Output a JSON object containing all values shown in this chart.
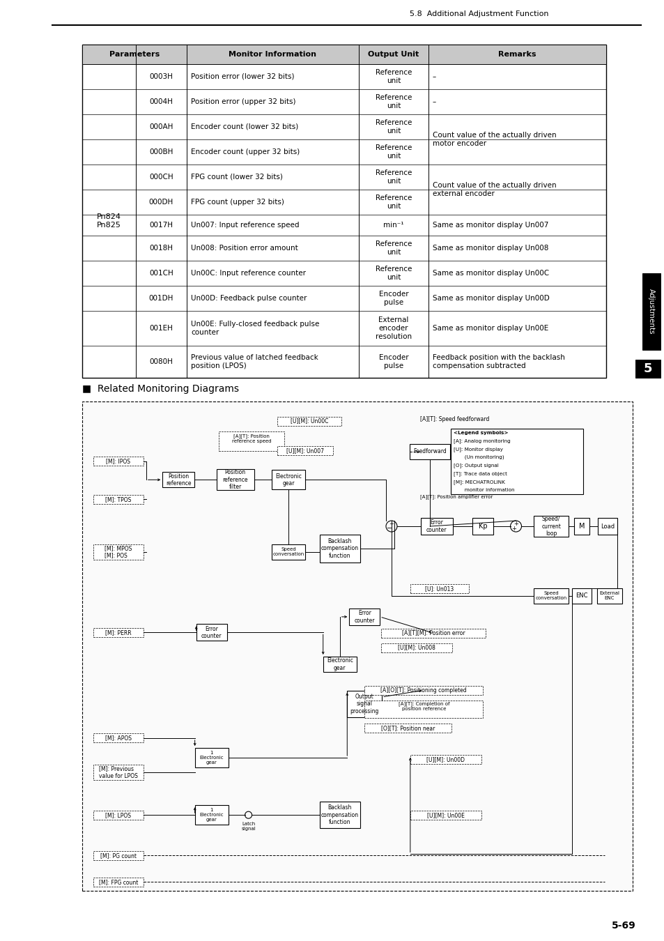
{
  "page_header": "5.8  Additional Adjustment Function",
  "page_footer": "5-69",
  "table_header": [
    "Parameters",
    "Monitor Information",
    "Output Unit",
    "Remarks"
  ],
  "param_label": "Pn824\nPn825",
  "table_rows": [
    {
      "code": "0003H",
      "info": "Position error (lower 32 bits)",
      "unit": "Reference\nunit",
      "remark": "–",
      "remark_span": 0
    },
    {
      "code": "0004H",
      "info": "Position error (upper 32 bits)",
      "unit": "Reference\nunit",
      "remark": "–",
      "remark_span": 0
    },
    {
      "code": "000AH",
      "info": "Encoder count (lower 32 bits)",
      "unit": "Reference\nunit",
      "remark": "Count value of the actually driven\nmotor encoder",
      "remark_span": 2
    },
    {
      "code": "000BH",
      "info": "Encoder count (upper 32 bits)",
      "unit": "Reference\nunit",
      "remark": "",
      "remark_span": 0
    },
    {
      "code": "000CH",
      "info": "FPG count (lower 32 bits)",
      "unit": "Reference\nunit",
      "remark": "Count value of the actually driven\nexternal encoder",
      "remark_span": 2
    },
    {
      "code": "000DH",
      "info": "FPG count (upper 32 bits)",
      "unit": "Reference\nunit",
      "remark": "",
      "remark_span": 0
    },
    {
      "code": "0017H",
      "info": "Un007: Input reference speed",
      "unit": "min⁻¹",
      "remark": "Same as monitor display Un007",
      "remark_span": 0
    },
    {
      "code": "0018H",
      "info": "Un008: Position error amount",
      "unit": "Reference\nunit",
      "remark": "Same as monitor display Un008",
      "remark_span": 0
    },
    {
      "code": "001CH",
      "info": "Un00C: Input reference counter",
      "unit": "Reference\nunit",
      "remark": "Same as monitor display Un00C",
      "remark_span": 0
    },
    {
      "code": "001DH",
      "info": "Un00D: Feedback pulse counter",
      "unit": "Encoder\npulse",
      "remark": "Same as monitor display Un00D",
      "remark_span": 0
    },
    {
      "code": "001EH",
      "info": "Un00E: Fully-closed feedback pulse\ncounter",
      "unit": "External\nencoder\nresolution",
      "remark": "Same as monitor display Un00E",
      "remark_span": 0
    },
    {
      "code": "0080H",
      "info": "Previous value of latched feedback\nposition (LPOS)",
      "unit": "Encoder\npulse",
      "remark": "Feedback position with the backlash\ncompensation subtracted",
      "remark_span": 0
    }
  ],
  "diagram_title": "■  Related Monitoring Diagrams",
  "bg_color": "#ffffff",
  "header_bg": "#c8c8c8",
  "text_color": "#000000"
}
